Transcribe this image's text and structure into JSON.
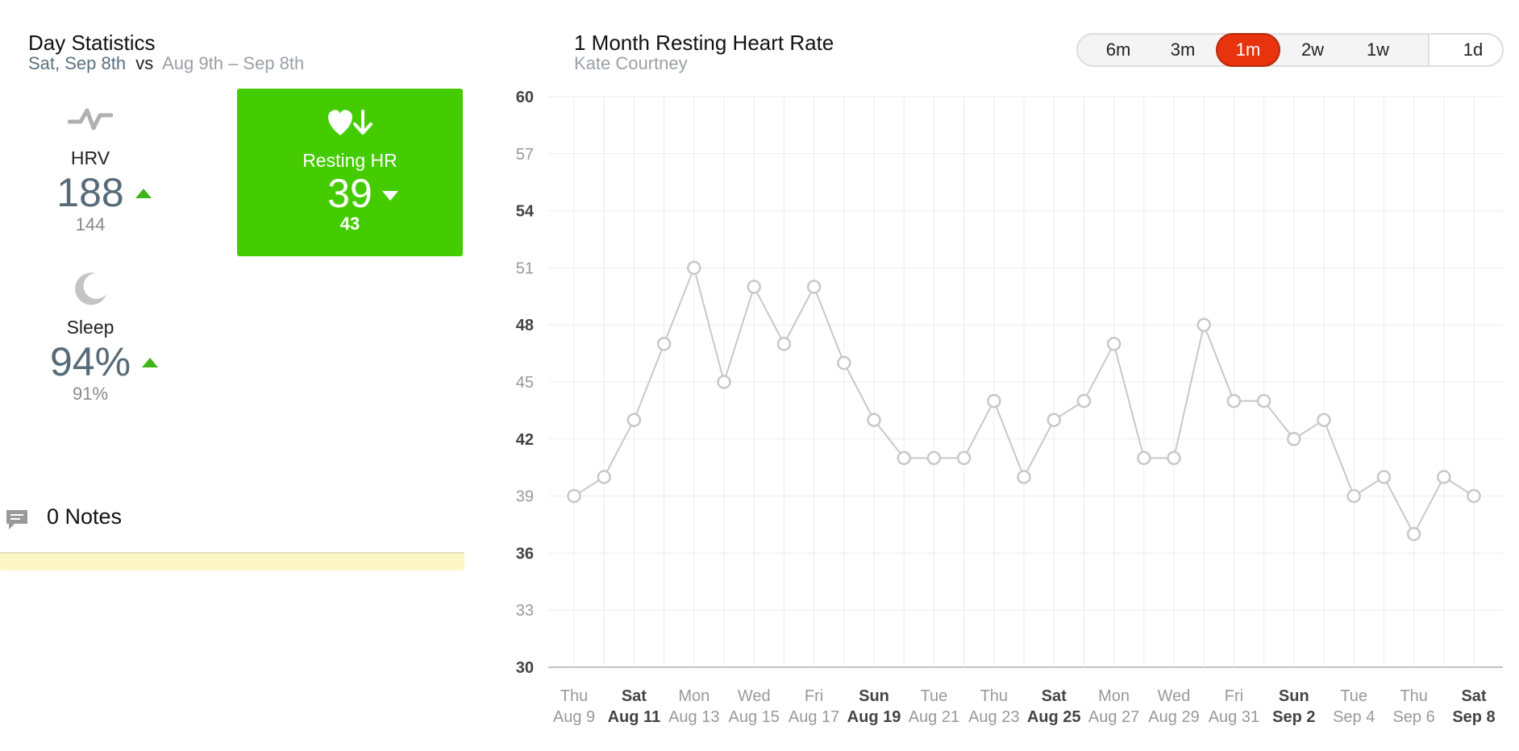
{
  "left": {
    "title": "Day Statistics",
    "subtitle_day": "Sat, Sep 8th",
    "subtitle_vs": "vs",
    "subtitle_range": "Aug 9th – Sep 8th",
    "hrv": {
      "label": "HRV",
      "value": "188",
      "previous": "144",
      "trend": "up",
      "icon": "pulse-icon"
    },
    "resting_hr": {
      "label": "Resting HR",
      "value": "39",
      "previous": "43",
      "trend": "down",
      "icon": "heart-down-icon",
      "color": "#44cc00"
    },
    "sleep": {
      "label": "Sleep",
      "value": "94%",
      "previous": "91%",
      "trend": "up",
      "icon": "moon-icon"
    },
    "notes": {
      "label": "0 Notes",
      "icon": "comment-icon"
    }
  },
  "header": {
    "title": "1 Month Resting Heart Rate",
    "subtitle": "Kate Courtney"
  },
  "range_buttons": [
    {
      "label": "6m",
      "active": false
    },
    {
      "label": "3m",
      "active": false
    },
    {
      "label": "1m",
      "active": true
    },
    {
      "label": "2w",
      "active": false
    },
    {
      "label": "1w",
      "active": false
    },
    {
      "label": "1d",
      "active": false
    }
  ],
  "colors": {
    "accent": "#e8330f",
    "up_trend": "#3fb618",
    "card_green": "#44cc00",
    "line": "#c8c8c8"
  },
  "chart_data": {
    "type": "line",
    "title": "1 Month Resting Heart Rate",
    "ylim": [
      30,
      60
    ],
    "yticks": [
      "60",
      "57",
      "54",
      "51",
      "48",
      "45",
      "42",
      "39",
      "36",
      "33",
      "30"
    ],
    "bold_yticks": [
      "60",
      "54",
      "48",
      "42",
      "36",
      "30"
    ],
    "x": [
      "Aug 9",
      "Aug 10",
      "Aug 11",
      "Aug 12",
      "Aug 13",
      "Aug 14",
      "Aug 15",
      "Aug 16",
      "Aug 17",
      "Aug 18",
      "Aug 19",
      "Aug 20",
      "Aug 21",
      "Aug 22",
      "Aug 23",
      "Aug 24",
      "Aug 25",
      "Aug 26",
      "Aug 27",
      "Aug 28",
      "Aug 29",
      "Aug 30",
      "Aug 31",
      "Sep 1",
      "Sep 2",
      "Sep 3",
      "Sep 4",
      "Sep 5",
      "Sep 6",
      "Sep 7",
      "Sep 8"
    ],
    "values": [
      39,
      40,
      43,
      47,
      51,
      45,
      50,
      47,
      50,
      46,
      43,
      41,
      41,
      41,
      44,
      40,
      43,
      44,
      47,
      41,
      41,
      48,
      44,
      44,
      42,
      43,
      39,
      40,
      37,
      40,
      39
    ],
    "xticks": [
      {
        "day": "Thu",
        "date": "Aug 9",
        "bold": false
      },
      {
        "day": "Sat",
        "date": "Aug 11",
        "bold": true
      },
      {
        "day": "Mon",
        "date": "Aug 13",
        "bold": false
      },
      {
        "day": "Wed",
        "date": "Aug 15",
        "bold": false
      },
      {
        "day": "Fri",
        "date": "Aug 17",
        "bold": false
      },
      {
        "day": "Sun",
        "date": "Aug 19",
        "bold": true
      },
      {
        "day": "Tue",
        "date": "Aug 21",
        "bold": false
      },
      {
        "day": "Thu",
        "date": "Aug 23",
        "bold": false
      },
      {
        "day": "Sat",
        "date": "Aug 25",
        "bold": true
      },
      {
        "day": "Mon",
        "date": "Aug 27",
        "bold": false
      },
      {
        "day": "Wed",
        "date": "Aug 29",
        "bold": false
      },
      {
        "day": "Fri",
        "date": "Aug 31",
        "bold": false
      },
      {
        "day": "Sun",
        "date": "Sep 2",
        "bold": true
      },
      {
        "day": "Tue",
        "date": "Sep 4",
        "bold": false
      },
      {
        "day": "Thu",
        "date": "Sep 6",
        "bold": false
      },
      {
        "day": "Sat",
        "date": "Sep 8",
        "bold": true
      }
    ],
    "grid": true,
    "legend": "none"
  }
}
